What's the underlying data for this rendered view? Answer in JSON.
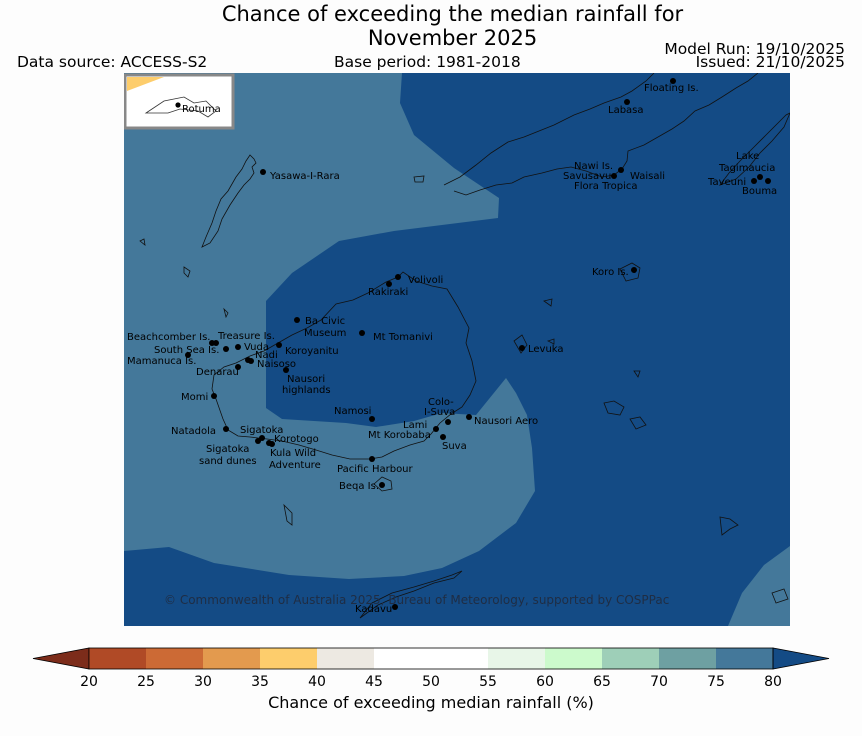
{
  "title": {
    "line1": "Chance of exceeding the median rainfall for",
    "line2": "November 2025"
  },
  "data_source": "Data source: ACCESS-S2",
  "base_period": "Base period: 1981-2018",
  "model_run": "Model Run: 19/10/2025",
  "issued": "Issued: 21/10/2025",
  "inset_label": "Rotuma",
  "copyright": "© Commonwealth of Australia 2025, Bureau of Meteorology, supported by COSPPac",
  "colors": {
    "band_75_80": "#44789a",
    "band_80_plus": "#144b85",
    "coast": "#111111"
  },
  "places": [
    {
      "name": "Floating Is."
    },
    {
      "name": "Labasa"
    },
    {
      "name": "Yasawa-I-Rara"
    },
    {
      "name": "Nawi Is."
    },
    {
      "name": "Savusavu"
    },
    {
      "name": "Waisali"
    },
    {
      "name": "Flora Tropica"
    },
    {
      "name": "Lake"
    },
    {
      "name": "Tagimaucia"
    },
    {
      "name": "Taveuni"
    },
    {
      "name": "Bouma"
    },
    {
      "name": "Koro Is."
    },
    {
      "name": "Volivoli"
    },
    {
      "name": "Rakiraki"
    },
    {
      "name": "Ba Civic"
    },
    {
      "name": "Museum"
    },
    {
      "name": "Mt Tomanivi"
    },
    {
      "name": "Beachcomber Is."
    },
    {
      "name": "Treasure Is."
    },
    {
      "name": "South Sea Is."
    },
    {
      "name": "Vuda"
    },
    {
      "name": "Koroyanitu"
    },
    {
      "name": "Nadi"
    },
    {
      "name": "Mamanuca Is."
    },
    {
      "name": "Naisoso"
    },
    {
      "name": "Denarau"
    },
    {
      "name": "Nausori"
    },
    {
      "name": "highlands"
    },
    {
      "name": "Levuka"
    },
    {
      "name": "Momi"
    },
    {
      "name": "Namosi"
    },
    {
      "name": "Colo-"
    },
    {
      "name": "I-Suva"
    },
    {
      "name": "Lami"
    },
    {
      "name": "Nausori Aero"
    },
    {
      "name": "Mt Korobaba"
    },
    {
      "name": "Suva"
    },
    {
      "name": "Natadola"
    },
    {
      "name": "Sigatoka"
    },
    {
      "name": "Korotogo"
    },
    {
      "name": "Sigatoka"
    },
    {
      "name": "sand dunes"
    },
    {
      "name": "Kula Wild"
    },
    {
      "name": "Adventure"
    },
    {
      "name": "Pacific Harbour"
    },
    {
      "name": "Beqa Is."
    },
    {
      "name": "Kadavu"
    }
  ],
  "colorbar": {
    "label": "Chance of exceeding median rainfall (%)",
    "ticks": [
      "20",
      "25",
      "30",
      "35",
      "40",
      "45",
      "50",
      "55",
      "60",
      "65",
      "70",
      "75",
      "80"
    ],
    "colors": [
      "#7c2c1a",
      "#b04a26",
      "#cc6a35",
      "#e39a4e",
      "#fdcd6c",
      "#ede9e2",
      "#ffffff",
      "#ffffff",
      "#e8f6e8",
      "#ccfacc",
      "#9ecfb8",
      "#6ea0a2",
      "#44789a",
      "#144b85"
    ]
  }
}
